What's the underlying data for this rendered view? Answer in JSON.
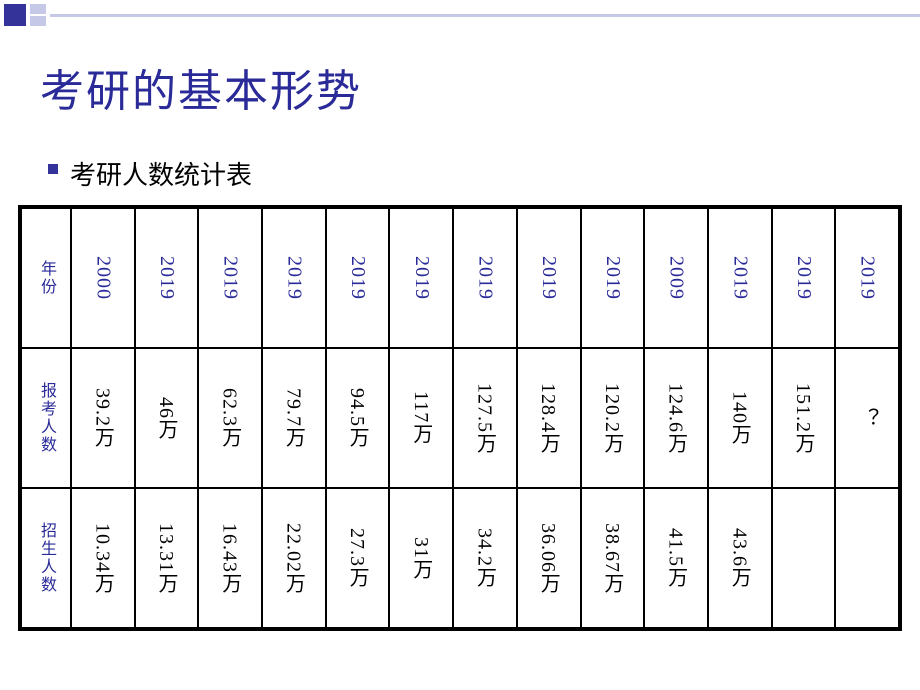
{
  "title": "考研的基本形势",
  "subtitle": "考研人数统计表",
  "colors": {
    "accent": "#2a2a99",
    "deco_dark": "#33339a",
    "deco_light": "#c5c8e6",
    "text": "#000000",
    "border": "#000000",
    "background": "#ffffff"
  },
  "table": {
    "row_labels": [
      "年份",
      "报考人数",
      "招生人数"
    ],
    "years": [
      "2000",
      "2019",
      "2019",
      "2019",
      "2019",
      "2019",
      "2019",
      "2019",
      "2019",
      "2009",
      "2019",
      "2019",
      "2019"
    ],
    "applicants": [
      "39.2万",
      "46万",
      "62.3万",
      "79.7万",
      "94.5万",
      "117万",
      "127.5万",
      "128.4万",
      "120.2万",
      "124.6万",
      "140万",
      "151.2万",
      "？"
    ],
    "enrollments": [
      "10.34万",
      "13.31万",
      "16.43万",
      "22.02万",
      "27.3万",
      "31万",
      "34.2万",
      "36.06万",
      "38.67万",
      "41.5万",
      "43.6万",
      "",
      ""
    ]
  },
  "typography": {
    "title_fontsize": 44,
    "subtitle_fontsize": 26,
    "cell_fontsize": 20,
    "label_fontsize": 18
  }
}
